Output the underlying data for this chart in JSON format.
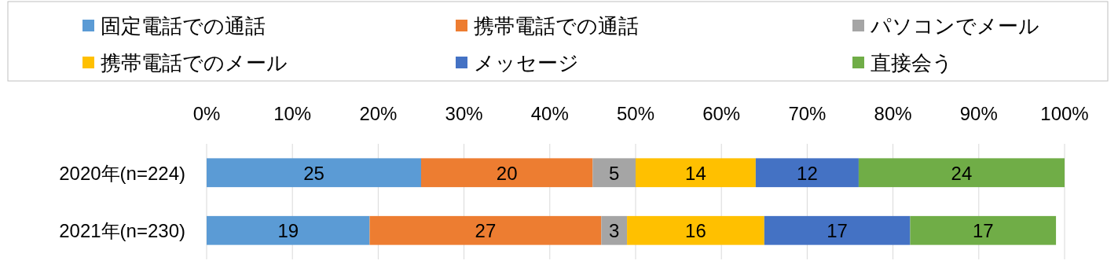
{
  "chart_data": {
    "type": "bar",
    "orientation": "horizontal",
    "stacked": true,
    "data_labels": true,
    "grid": "x",
    "legend": "top",
    "categories": [
      "2020年(n=224)",
      "2021年(n=230)"
    ],
    "xlim": [
      0,
      100
    ],
    "xticks": [
      {
        "value": 0,
        "label": "0%"
      },
      {
        "value": 10,
        "label": "10%"
      },
      {
        "value": 20,
        "label": "20%"
      },
      {
        "value": 30,
        "label": "30%"
      },
      {
        "value": 40,
        "label": "40%"
      },
      {
        "value": 50,
        "label": "50%"
      },
      {
        "value": 60,
        "label": "60%"
      },
      {
        "value": 70,
        "label": "70%"
      },
      {
        "value": 80,
        "label": "80%"
      },
      {
        "value": 90,
        "label": "90%"
      },
      {
        "value": 100,
        "label": "100%"
      }
    ],
    "series": [
      {
        "name": "固定電話での通話",
        "color": "#5b9bd5",
        "values": [
          25,
          19
        ]
      },
      {
        "name": "携帯電話での通話",
        "color": "#ed7d31",
        "values": [
          20,
          27
        ]
      },
      {
        "name": "パソコンでメール",
        "color": "#a5a5a5",
        "values": [
          5,
          3
        ]
      },
      {
        "name": "携帯電話でのメール",
        "color": "#ffc000",
        "values": [
          14,
          16
        ]
      },
      {
        "name": "メッセージ",
        "color": "#4472c4",
        "values": [
          12,
          17
        ]
      },
      {
        "name": "直接会う",
        "color": "#70ad47",
        "values": [
          24,
          17
        ]
      }
    ]
  }
}
